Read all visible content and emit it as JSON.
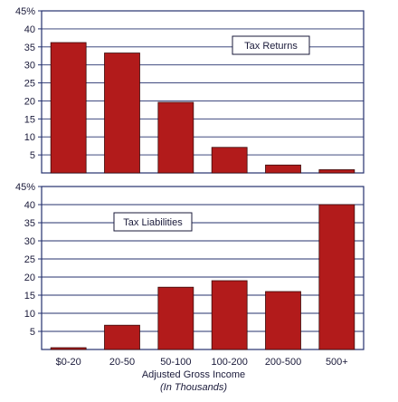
{
  "colors": {
    "bar": "#b21b1b",
    "bar_stroke": "#3a0a0a",
    "frame": "#24316e",
    "grid": "#24316e",
    "text": "#1a1a3a"
  },
  "chart_data": [
    {
      "type": "bar",
      "categories": [
        "$0-20",
        "20-50",
        "50-100",
        "100-200",
        "200-500",
        "500+"
      ],
      "values": [
        36.2,
        33.3,
        19.6,
        7.1,
        2.2,
        0.9
      ],
      "ylim": [
        0,
        45
      ],
      "yticks": [
        "5",
        "10",
        "15",
        "20",
        "25",
        "30",
        "35",
        "40",
        "45%"
      ],
      "legend": "Tax Returns",
      "legend_position": "top-right",
      "grid": true
    },
    {
      "type": "bar",
      "categories": [
        "$0-20",
        "20-50",
        "50-100",
        "100-200",
        "200-500",
        "500+"
      ],
      "values": [
        0.5,
        6.7,
        17.2,
        19.0,
        16.0,
        40.0
      ],
      "ylim": [
        0,
        45
      ],
      "yticks": [
        "5",
        "10",
        "15",
        "20",
        "25",
        "30",
        "35",
        "40",
        "45%"
      ],
      "legend": "Tax Liabilities",
      "legend_position": "top-left",
      "grid": true
    }
  ],
  "x_tick_labels": [
    "$0-20",
    "20-50",
    "50-100",
    "100-200",
    "200-500",
    "500+"
  ],
  "xlabel": "Adjusted Gross Income",
  "xlabel_sub": "(In Thousands)"
}
